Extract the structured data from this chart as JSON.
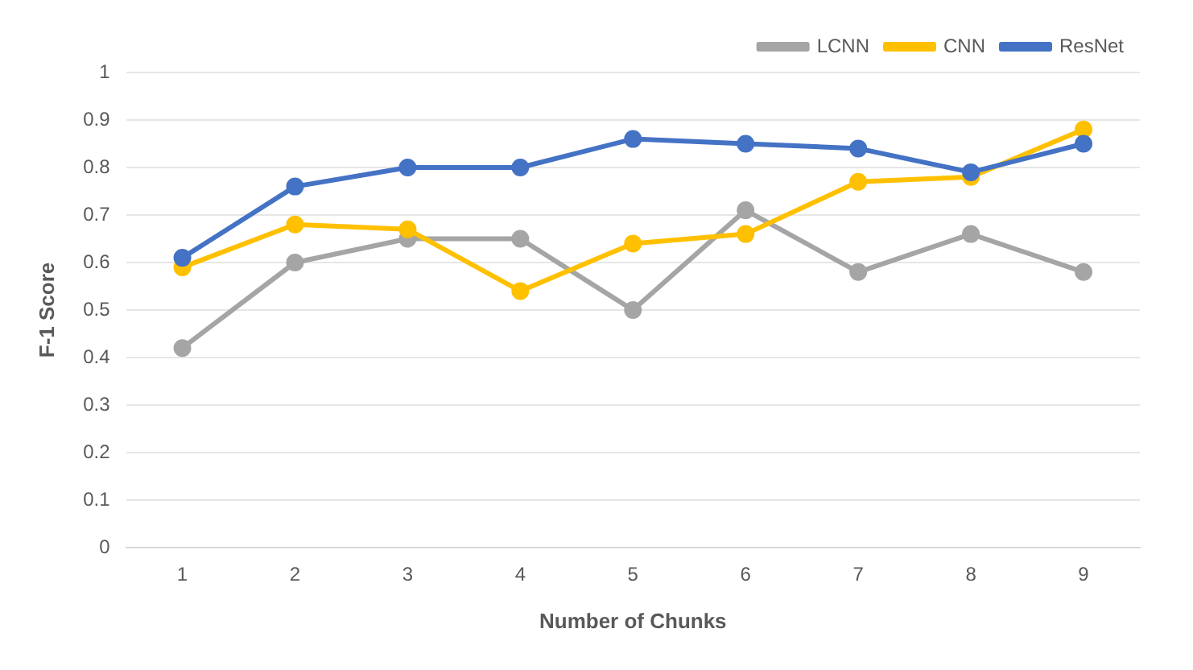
{
  "chart_data": {
    "type": "line",
    "xlabel": "Number of Chunks",
    "ylabel": "F-1 Score",
    "categories": [
      "1",
      "2",
      "3",
      "4",
      "5",
      "6",
      "7",
      "8",
      "9"
    ],
    "series": [
      {
        "name": "LCNN",
        "color": "#a5a5a5",
        "values": [
          0.42,
          0.6,
          0.65,
          0.65,
          0.5,
          0.71,
          0.58,
          0.66,
          0.58
        ]
      },
      {
        "name": "CNN",
        "color": "#ffc000",
        "values": [
          0.59,
          0.68,
          0.67,
          0.54,
          0.64,
          0.66,
          0.77,
          0.78,
          0.88
        ]
      },
      {
        "name": "ResNet",
        "color": "#4472c4",
        "values": [
          0.61,
          0.76,
          0.8,
          0.8,
          0.86,
          0.85,
          0.84,
          0.79,
          0.85
        ]
      }
    ],
    "ylim": [
      0,
      1
    ],
    "yticks": [
      0,
      0.1,
      0.2,
      0.3,
      0.4,
      0.5,
      0.6,
      0.7,
      0.8,
      0.9,
      1
    ],
    "grid": "y",
    "legend": "top right",
    "marker": "circle",
    "line_style": "solid"
  }
}
